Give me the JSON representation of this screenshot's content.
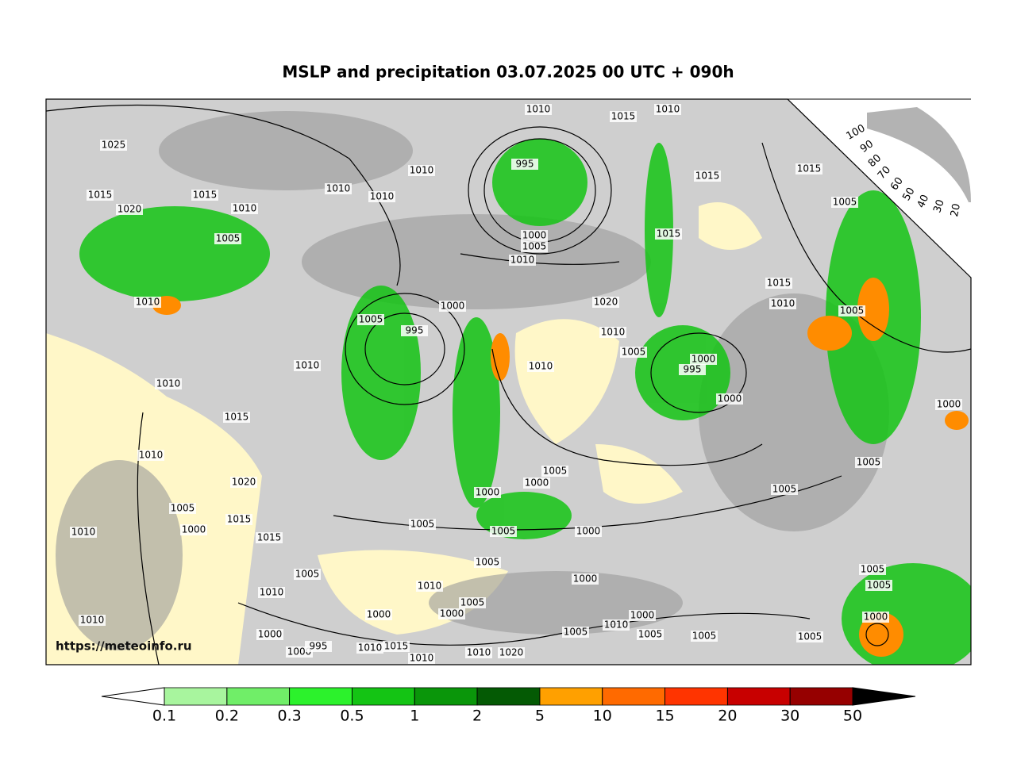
{
  "title": "MSLP and precipitation 03.07.2025 00 UTC + 090h",
  "watermark": "https://meteoinfo.ru",
  "colorbar": {
    "ticks": [
      0.1,
      0.2,
      0.3,
      0.5,
      1,
      2,
      5,
      10,
      15,
      20,
      30,
      50
    ],
    "colors": [
      "#a8f59e",
      "#70ee68",
      "#2cf22c",
      "#14c414",
      "#0a960a",
      "#045a04",
      "#ffa000",
      "#ff6a00",
      "#ff3400",
      "#c80000",
      "#960000"
    ],
    "under_color": "#ffffff",
    "over_color": "#000000"
  },
  "cloud_scale": [
    100,
    90,
    80,
    70,
    60,
    50,
    40,
    30,
    20
  ],
  "isobar_labels": [
    "1025",
    "1015",
    "1020",
    "1015",
    "1010",
    "1005",
    "1010",
    "1010",
    "1010",
    "995",
    "1010",
    "1015",
    "1010",
    "1015",
    "1015",
    "1005",
    "1015",
    "1000",
    "1005",
    "1010",
    "1020",
    "1015",
    "1010",
    "1005",
    "1010",
    "1005",
    "995",
    "1000",
    "1010",
    "1005",
    "1000",
    "995",
    "1010",
    "1000",
    "1010",
    "1010",
    "1015",
    "1000",
    "1010",
    "1020",
    "1005",
    "1000",
    "1000",
    "1005",
    "1005",
    "1005",
    "1015",
    "1000",
    "1010",
    "1015",
    "1005",
    "1005",
    "1000",
    "1005",
    "1005",
    "1000",
    "1010",
    "1010",
    "1005",
    "1000",
    "1000",
    "1000",
    "1010",
    "1005",
    "1005",
    "1005",
    "1005",
    "1005",
    "1005",
    "1000",
    "1010",
    "1000",
    "1000",
    "995",
    "1010",
    "1015",
    "1010",
    "1010",
    "1020"
  ]
}
